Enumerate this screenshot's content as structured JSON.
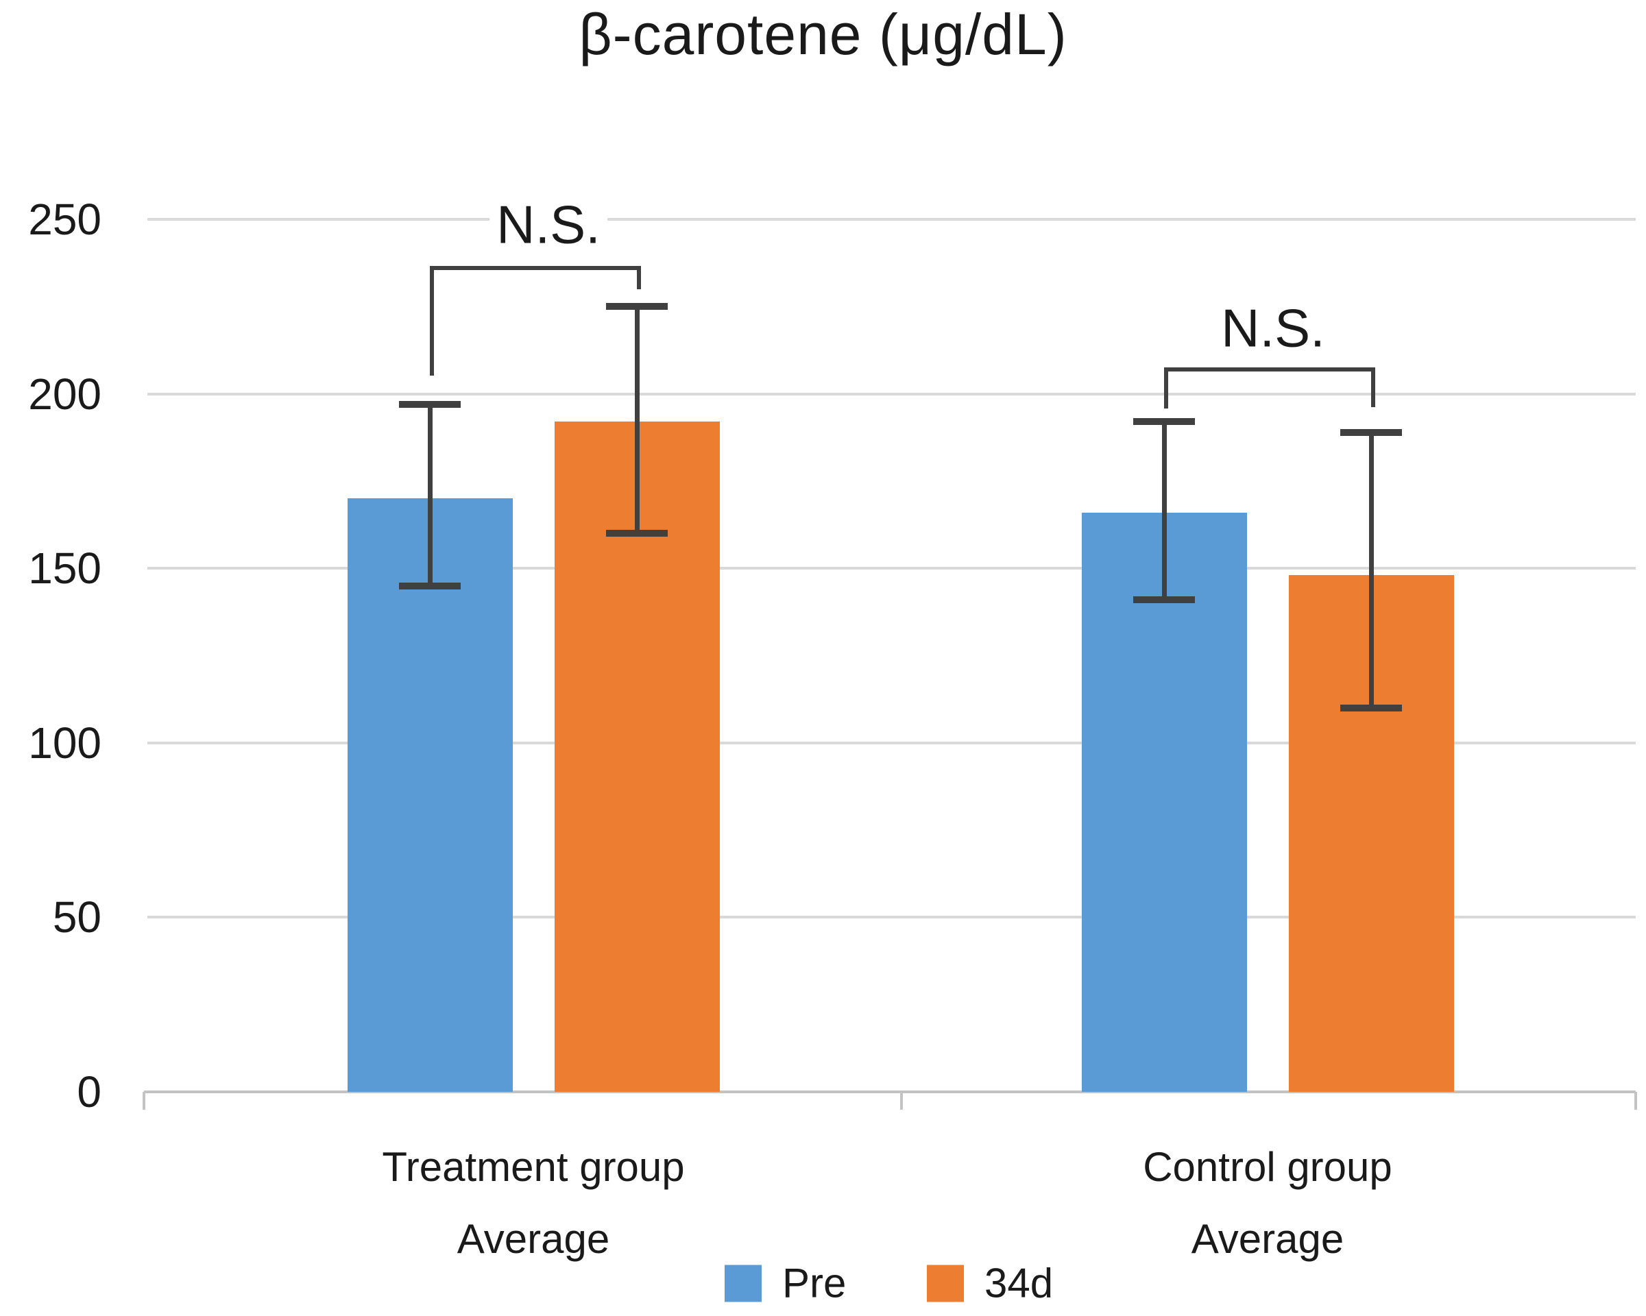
{
  "chart": {
    "title": "β-carotene (μg/dL)"
  },
  "chart_data": {
    "type": "bar",
    "title": "β-carotene (μg/dL)",
    "categories": [
      "Treatment group\nAverage",
      "Control group\nAverage"
    ],
    "series": [
      {
        "name": "Pre",
        "color": "#5B9BD5",
        "values": [
          170,
          166
        ],
        "error_high": [
          197,
          192
        ],
        "error_low": [
          145,
          141
        ]
      },
      {
        "name": "34d",
        "color": "#ED7D31",
        "values": [
          192,
          148
        ],
        "error_high": [
          225,
          189
        ],
        "error_low": [
          160,
          110
        ]
      }
    ],
    "annotations": [
      {
        "text": "N.S.",
        "group": "Treatment group Average",
        "compares": [
          "Pre",
          "34d"
        ]
      },
      {
        "text": "N.S.",
        "group": "Control group Average",
        "compares": [
          "Pre",
          "34d"
        ]
      }
    ],
    "xlabel": "",
    "ylabel": "",
    "unit": "μg/dL",
    "ylim": [
      0,
      250
    ],
    "yticks": [
      0,
      50,
      100,
      150,
      200,
      250
    ],
    "grid": true,
    "legend_position": "bottom-center"
  },
  "legend": {
    "items": [
      {
        "label": "Pre",
        "color": "#5B9BD5"
      },
      {
        "label": "34d",
        "color": "#ED7D31"
      }
    ]
  },
  "colors": {
    "pre_series": "#5B9BD5",
    "post_series": "#ED7D31",
    "error_bar": "#404040",
    "gridline": "#D9D9D9",
    "axis_line": "#C3C3C3",
    "text": "#1A1A1A"
  }
}
